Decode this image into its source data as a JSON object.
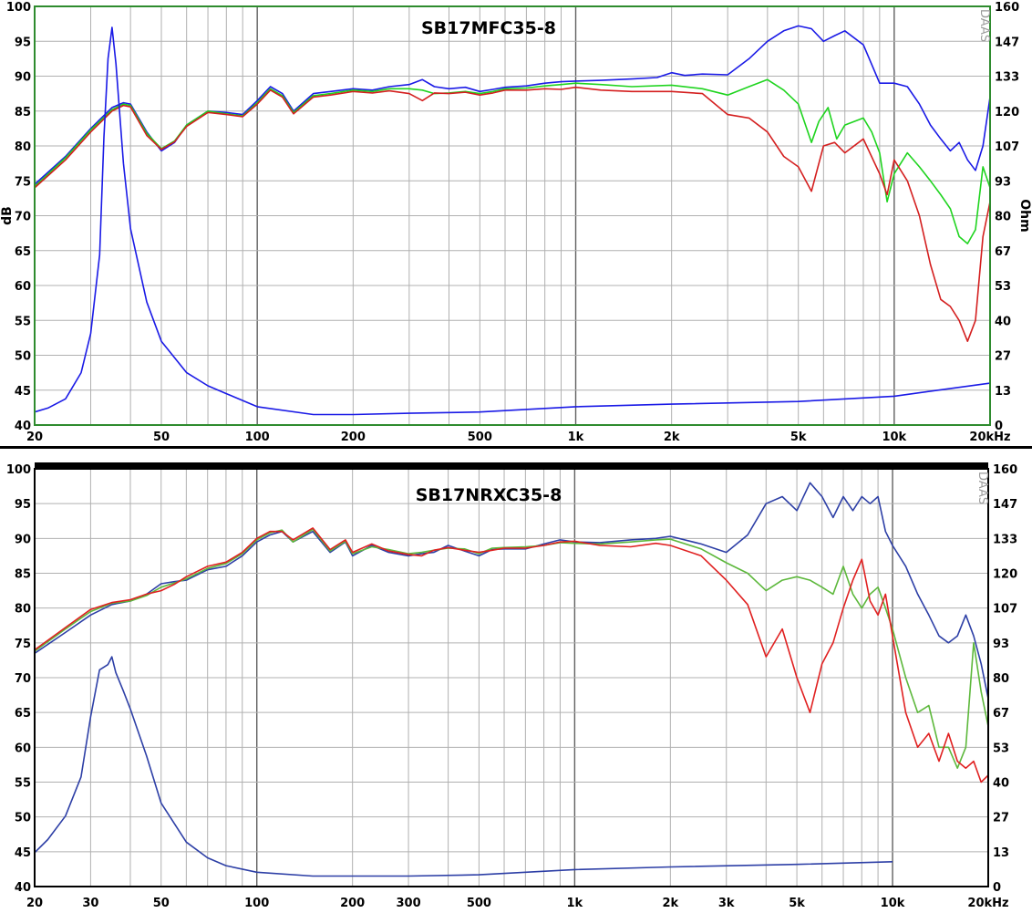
{
  "chart_data": [
    {
      "type": "line",
      "title": "SB17MFC35-8",
      "watermark": "DAAS",
      "xscale": "log",
      "xlim": [
        20,
        20000
      ],
      "ylim": [
        40,
        100
      ],
      "y2lim": [
        0,
        160
      ],
      "ylabel": "dB",
      "y2label": "Ohm",
      "x_tick_labels": [
        "20",
        "50",
        "100",
        "200",
        "500",
        "1k",
        "2k",
        "5k",
        "10k",
        "20kHz"
      ],
      "x_tick_values": [
        20,
        50,
        100,
        200,
        500,
        1000,
        2000,
        5000,
        10000,
        20000
      ],
      "y_ticks": [
        40,
        45,
        50,
        55,
        60,
        65,
        70,
        75,
        80,
        85,
        90,
        95,
        100
      ],
      "y2_ticks": [
        "0",
        "13",
        "27",
        "40",
        "53",
        "67",
        "80",
        "93",
        "107",
        "120",
        "133",
        "147",
        "160"
      ],
      "grid": true,
      "colors": {
        "frame": "#2e8b2e",
        "grid": "#b0b0b0",
        "major_grid": "#606060"
      },
      "series": [
        {
          "color": "#1a1ae6",
          "axis": "left",
          "x": [
            20,
            25,
            30,
            35,
            38,
            40,
            45,
            50,
            55,
            60,
            70,
            80,
            90,
            100,
            110,
            120,
            130,
            150,
            170,
            200,
            230,
            260,
            300,
            330,
            360,
            400,
            450,
            500,
            550,
            600,
            700,
            800,
            900,
            1000,
            1200,
            1500,
            1800,
            2000,
            2200,
            2500,
            3000,
            3500,
            4000,
            4500,
            5000,
            5500,
            6000,
            6500,
            7000,
            8000,
            9000,
            10000,
            11000,
            12000,
            13000,
            14000,
            15000,
            16000,
            17000,
            18000,
            19000,
            20000
          ],
          "y": [
            74.5,
            78.5,
            82.5,
            85.5,
            86.2,
            86,
            82,
            79.3,
            80.5,
            83,
            85,
            84.8,
            84.5,
            86.5,
            88.5,
            87.5,
            85,
            87.5,
            87.8,
            88.2,
            88,
            88.5,
            88.8,
            89.5,
            88.5,
            88.2,
            88.4,
            87.8,
            88.1,
            88.4,
            88.6,
            89,
            89.2,
            89.3,
            89.4,
            89.6,
            89.8,
            90.5,
            90.1,
            90.3,
            90.2,
            92.5,
            95,
            96.5,
            97.2,
            96.8,
            95,
            95.8,
            96.5,
            94.5,
            89,
            89,
            88.5,
            86,
            83,
            81,
            79.3,
            80.5,
            78,
            76.5,
            80,
            87
          ]
        },
        {
          "color": "#1fd41f",
          "axis": "left",
          "x": [
            20,
            25,
            30,
            35,
            38,
            40,
            45,
            50,
            55,
            60,
            70,
            80,
            90,
            100,
            110,
            120,
            130,
            150,
            170,
            200,
            230,
            260,
            300,
            330,
            360,
            400,
            450,
            500,
            550,
            600,
            700,
            800,
            900,
            1000,
            1200,
            1500,
            2000,
            2500,
            3000,
            3500,
            4000,
            4500,
            5000,
            5500,
            5800,
            6200,
            6600,
            7000,
            8000,
            8500,
            9000,
            9500,
            10000,
            11000,
            12000,
            13000,
            14000,
            15000,
            16000,
            17000,
            18000,
            19000,
            20000
          ],
          "y": [
            74.2,
            78.3,
            82.3,
            85.2,
            86,
            85.8,
            81.8,
            79.6,
            80.7,
            83,
            85,
            84.6,
            84.3,
            86.2,
            88.2,
            87.2,
            84.8,
            87.2,
            87.5,
            88,
            87.8,
            88.2,
            88.2,
            88,
            87.5,
            87.6,
            87.8,
            87.5,
            87.8,
            88.2,
            88.3,
            88.6,
            88.8,
            89,
            88.8,
            88.5,
            88.7,
            88.2,
            87.3,
            88.5,
            89.5,
            88,
            86,
            80.5,
            83.5,
            85.5,
            81,
            83,
            84,
            82,
            79,
            72,
            76,
            79,
            77,
            75,
            73,
            71,
            67,
            66,
            68,
            77,
            74
          ]
        },
        {
          "color": "#d41f1f",
          "axis": "left",
          "x": [
            20,
            25,
            30,
            35,
            38,
            40,
            45,
            50,
            55,
            60,
            70,
            80,
            90,
            100,
            110,
            120,
            130,
            150,
            170,
            200,
            230,
            260,
            300,
            330,
            360,
            400,
            450,
            500,
            550,
            600,
            700,
            800,
            900,
            1000,
            1200,
            1500,
            2000,
            2500,
            3000,
            3500,
            4000,
            4500,
            5000,
            5500,
            6000,
            6500,
            7000,
            8000,
            9000,
            9500,
            10000,
            11000,
            12000,
            13000,
            14000,
            15000,
            16000,
            17000,
            18000,
            19000,
            20000
          ],
          "y": [
            74,
            78,
            82,
            85,
            85.8,
            85.6,
            81.5,
            79.5,
            80.6,
            82.8,
            84.8,
            84.5,
            84.2,
            86,
            88,
            87,
            84.6,
            87,
            87.3,
            87.8,
            87.6,
            87.9,
            87.5,
            86.5,
            87.6,
            87.5,
            87.7,
            87.3,
            87.6,
            88,
            88,
            88.2,
            88.1,
            88.4,
            88,
            87.8,
            87.8,
            87.5,
            84.5,
            84,
            82,
            78.5,
            77,
            73.5,
            80,
            80.5,
            79,
            81,
            76,
            73,
            78,
            75,
            70,
            63,
            58,
            57,
            55,
            52,
            55,
            67,
            72
          ]
        },
        {
          "color": "#1a1ae6",
          "axis": "right",
          "x": [
            20,
            22,
            25,
            28,
            30,
            32,
            33,
            34,
            35,
            36,
            38,
            40,
            45,
            50,
            60,
            70,
            80,
            100,
            150,
            200,
            300,
            500,
            1000,
            2000,
            5000,
            10000,
            20000
          ],
          "y": [
            5,
            6.5,
            10,
            20,
            35,
            65,
            110,
            140,
            152,
            138,
            100,
            75,
            47,
            32,
            20,
            15,
            12,
            7,
            4,
            4,
            4.5,
            5,
            7,
            8,
            9,
            11,
            16
          ]
        }
      ]
    },
    {
      "type": "line",
      "title": "SB17NRXC35-8",
      "watermark": "DAAS",
      "xscale": "log",
      "xlim": [
        20,
        20000
      ],
      "ylim": [
        40,
        100
      ],
      "y2lim": [
        0,
        160
      ],
      "ylabel": "",
      "y2label": "",
      "x_tick_labels": [
        "20",
        "30",
        "50",
        "100",
        "200",
        "300",
        "500",
        "1k",
        "2k",
        "3k",
        "5k",
        "10k",
        "20kHz"
      ],
      "x_tick_values": [
        20,
        30,
        50,
        100,
        200,
        300,
        500,
        1000,
        2000,
        3000,
        5000,
        10000,
        20000
      ],
      "y_ticks": [
        40,
        45,
        50,
        55,
        60,
        65,
        70,
        75,
        80,
        85,
        90,
        95,
        100
      ],
      "y2_ticks": [
        "0",
        "13",
        "27",
        "40",
        "53",
        "67",
        "80",
        "93",
        "107",
        "120",
        "133",
        "147",
        "160"
      ],
      "grid": true,
      "colors": {
        "frame": "#000000",
        "grid": "#b0b0b0",
        "major_grid": "#606060",
        "topbar": "#000000"
      },
      "series": [
        {
          "color": "#2d3fa6",
          "axis": "left",
          "x": [
            20,
            25,
            30,
            35,
            40,
            45,
            50,
            55,
            60,
            70,
            80,
            90,
            100,
            110,
            120,
            130,
            150,
            170,
            190,
            200,
            230,
            260,
            300,
            330,
            360,
            400,
            450,
            500,
            550,
            600,
            700,
            800,
            900,
            1000,
            1200,
            1500,
            1800,
            2000,
            2500,
            3000,
            3500,
            4000,
            4500,
            5000,
            5500,
            6000,
            6500,
            7000,
            7500,
            8000,
            8500,
            9000,
            9500,
            10000,
            11000,
            12000,
            13000,
            14000,
            15000,
            16000,
            17000,
            18000,
            19000,
            20000
          ],
          "y": [
            73.5,
            76.5,
            79,
            80.5,
            81,
            82,
            83.5,
            83.8,
            84,
            85.5,
            86,
            87.5,
            89.5,
            90.5,
            91,
            89.5,
            91,
            88,
            89.5,
            87.5,
            89,
            88,
            87.5,
            87.8,
            88,
            89,
            88.2,
            87.5,
            88.4,
            88.5,
            88.5,
            89.2,
            89.8,
            89.5,
            89.4,
            89.8,
            90,
            90.3,
            89.2,
            88,
            90.5,
            95,
            96,
            94,
            98,
            96,
            93,
            96,
            94,
            96,
            95,
            96,
            91,
            89,
            86,
            82,
            79,
            76,
            75,
            76,
            79,
            76,
            72,
            67
          ]
        },
        {
          "color": "#5db83c",
          "axis": "left",
          "x": [
            20,
            25,
            30,
            35,
            40,
            45,
            50,
            55,
            60,
            70,
            80,
            90,
            100,
            110,
            120,
            130,
            150,
            170,
            190,
            200,
            230,
            260,
            300,
            330,
            360,
            400,
            450,
            500,
            550,
            600,
            700,
            800,
            900,
            1000,
            1200,
            1500,
            1800,
            2000,
            2500,
            3000,
            3500,
            4000,
            4500,
            5000,
            5500,
            6000,
            6500,
            7000,
            7500,
            8000,
            8500,
            9000,
            9500,
            10000,
            11000,
            12000,
            13000,
            14000,
            15000,
            16000,
            17000,
            18000,
            19000,
            20000
          ],
          "y": [
            73.8,
            77,
            79.5,
            80.7,
            81,
            81.8,
            83,
            83.6,
            84.2,
            85.7,
            86.4,
            87.8,
            89.8,
            90.8,
            91.2,
            89.5,
            91.3,
            88.2,
            89.6,
            87.8,
            88.8,
            88.4,
            87.8,
            88,
            88.3,
            88.6,
            88.5,
            87.8,
            88.6,
            88.7,
            88.8,
            89,
            89.4,
            89.3,
            89.2,
            89.5,
            89.8,
            89.9,
            88.5,
            86.5,
            85,
            82.5,
            84,
            84.5,
            84,
            83,
            82,
            86,
            82,
            80,
            82,
            83,
            80,
            77,
            70,
            65,
            66,
            60,
            60,
            57,
            60,
            75,
            68,
            63
          ]
        },
        {
          "color": "#e02020",
          "axis": "left",
          "x": [
            20,
            25,
            30,
            35,
            40,
            45,
            50,
            55,
            60,
            70,
            80,
            90,
            100,
            110,
            120,
            130,
            150,
            170,
            190,
            200,
            230,
            260,
            300,
            330,
            360,
            400,
            450,
            500,
            550,
            600,
            700,
            800,
            900,
            1000,
            1200,
            1500,
            1800,
            2000,
            2500,
            3000,
            3500,
            4000,
            4500,
            5000,
            5500,
            6000,
            6500,
            7000,
            7500,
            8000,
            8500,
            9000,
            9500,
            10000,
            11000,
            12000,
            13000,
            14000,
            15000,
            16000,
            17000,
            18000,
            19000,
            20000
          ],
          "y": [
            74,
            77.2,
            79.8,
            80.8,
            81.2,
            82,
            82.5,
            83.4,
            84.5,
            86,
            86.6,
            88,
            90,
            91,
            91,
            89.8,
            91.5,
            88.4,
            89.8,
            88,
            89.2,
            88.2,
            87.7,
            87.5,
            88.3,
            88.7,
            88.3,
            88,
            88.3,
            88.6,
            88.6,
            89,
            89.5,
            89.6,
            89,
            88.8,
            89.3,
            89,
            87.5,
            84,
            80.5,
            73,
            77,
            70,
            65,
            72,
            75,
            80,
            84,
            87,
            81,
            79,
            82,
            76,
            65,
            60,
            62,
            58,
            62,
            58,
            57,
            58,
            55,
            56
          ]
        },
        {
          "color": "#2d3fa6",
          "axis": "right",
          "x": [
            20,
            22,
            25,
            28,
            30,
            32,
            34,
            35,
            36,
            38,
            40,
            45,
            50,
            60,
            70,
            80,
            100,
            150,
            200,
            300,
            500,
            1000,
            2000,
            5000,
            10000
          ],
          "y": [
            13,
            18,
            27,
            42,
            65,
            83,
            85,
            88,
            82,
            75,
            68,
            50,
            32,
            17,
            11,
            8,
            5.5,
            4,
            4,
            4,
            4.5,
            6.5,
            7.5,
            8.5,
            9.5
          ]
        }
      ]
    }
  ]
}
